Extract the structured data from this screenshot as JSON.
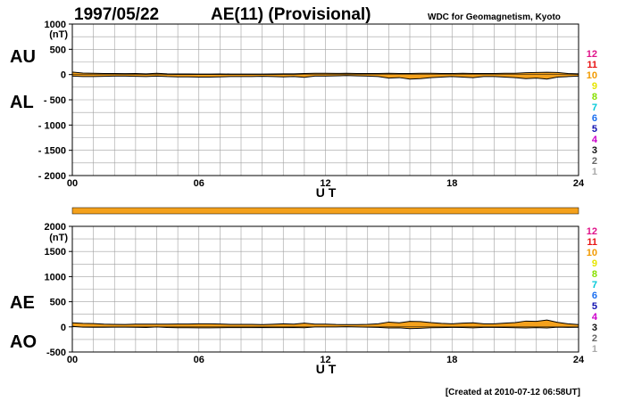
{
  "header": {
    "date": "1997/05/22",
    "title": "AE(11) (Provisional)",
    "source": "WDC for Geomagnetism, Kyoto"
  },
  "footer": {
    "created": "[Created at 2010-07-12 06:58UT]"
  },
  "colors": {
    "fill": "#f4a11c",
    "line": "#000000",
    "grid": "#a0a0a0"
  },
  "legend": {
    "levels": [
      {
        "label": "12",
        "color": "#e0138a"
      },
      {
        "label": "11",
        "color": "#e81414"
      },
      {
        "label": "10",
        "color": "#f29a00"
      },
      {
        "label": "9",
        "color": "#e6e600"
      },
      {
        "label": "8",
        "color": "#88e000"
      },
      {
        "label": "7",
        "color": "#00c8d8"
      },
      {
        "label": "6",
        "color": "#1a6ef0"
      },
      {
        "label": "5",
        "color": "#1010b0"
      },
      {
        "label": "4",
        "color": "#cc00cc"
      },
      {
        "label": "3",
        "color": "#111111"
      },
      {
        "label": "2",
        "color": "#666666"
      },
      {
        "label": "1",
        "color": "#aaaaaa"
      }
    ]
  },
  "chart_data": [
    {
      "type": "area",
      "panel": "AU/AL",
      "ylabel": "(nT)",
      "xlabel": "U T",
      "side_labels": [
        "AU",
        "AL"
      ],
      "xlim": [
        0,
        24
      ],
      "ylim": [
        -2000,
        1000
      ],
      "xticks": [
        "00",
        "06",
        "12",
        "18",
        "24"
      ],
      "yticks": [
        "1000",
        "500",
        "0",
        "- 500",
        "- 1000",
        "- 1500",
        "- 2000"
      ],
      "yticks_values": [
        1000,
        500,
        0,
        -500,
        -1000,
        -1500,
        -2000
      ],
      "grid": true,
      "x": [
        0,
        0.5,
        1,
        1.5,
        2,
        2.5,
        3,
        3.5,
        4,
        4.5,
        5,
        5.5,
        6,
        6.5,
        7,
        7.5,
        8,
        8.5,
        9,
        9.5,
        10,
        10.5,
        11,
        11.5,
        12,
        12.5,
        13,
        13.5,
        14,
        14.5,
        15,
        15.5,
        16,
        16.5,
        17,
        17.5,
        18,
        18.5,
        19,
        19.5,
        20,
        20.5,
        21,
        21.5,
        22,
        22.5,
        23,
        23.5,
        24
      ],
      "series": [
        {
          "name": "AU",
          "values": [
            50,
            30,
            25,
            20,
            20,
            18,
            20,
            15,
            25,
            15,
            12,
            12,
            10,
            10,
            12,
            10,
            10,
            10,
            10,
            12,
            15,
            15,
            20,
            25,
            25,
            22,
            25,
            20,
            20,
            20,
            25,
            20,
            20,
            25,
            25,
            20,
            20,
            25,
            20,
            20,
            20,
            25,
            25,
            35,
            40,
            45,
            40,
            20,
            15
          ]
        },
        {
          "name": "AL",
          "values": [
            -30,
            -40,
            -40,
            -35,
            -30,
            -30,
            -35,
            -40,
            -30,
            -40,
            -45,
            -45,
            -50,
            -50,
            -45,
            -40,
            -40,
            -40,
            -35,
            -40,
            -45,
            -40,
            -55,
            -30,
            -30,
            -25,
            -20,
            -25,
            -30,
            -40,
            -70,
            -60,
            -90,
            -80,
            -60,
            -50,
            -40,
            -50,
            -60,
            -40,
            -40,
            -50,
            -60,
            -80,
            -70,
            -90,
            -50,
            -40,
            -30
          ]
        }
      ]
    },
    {
      "type": "area",
      "panel": "AE/AO",
      "ylabel": "(nT)",
      "xlabel": "U T",
      "side_labels": [
        "AE",
        "AO"
      ],
      "xlim": [
        0,
        24
      ],
      "ylim": [
        -500,
        2000
      ],
      "xticks": [
        "00",
        "06",
        "12",
        "18",
        "24"
      ],
      "yticks": [
        "2000",
        "1500",
        "1000",
        "500",
        "0",
        "-500"
      ],
      "yticks_values": [
        2000,
        1500,
        1000,
        500,
        0,
        -500
      ],
      "grid": true,
      "x": [
        0,
        0.5,
        1,
        1.5,
        2,
        2.5,
        3,
        3.5,
        4,
        4.5,
        5,
        5.5,
        6,
        6.5,
        7,
        7.5,
        8,
        8.5,
        9,
        9.5,
        10,
        10.5,
        11,
        11.5,
        12,
        12.5,
        13,
        13.5,
        14,
        14.5,
        15,
        15.5,
        16,
        16.5,
        17,
        17.5,
        18,
        18.5,
        19,
        19.5,
        20,
        20.5,
        21,
        21.5,
        22,
        22.5,
        23,
        23.5,
        24
      ],
      "series": [
        {
          "name": "AE",
          "values": [
            80,
            70,
            65,
            55,
            50,
            48,
            55,
            55,
            55,
            55,
            57,
            57,
            60,
            60,
            57,
            50,
            50,
            50,
            45,
            52,
            60,
            55,
            75,
            55,
            55,
            47,
            45,
            45,
            50,
            60,
            95,
            80,
            110,
            105,
            85,
            70,
            60,
            75,
            80,
            60,
            60,
            75,
            85,
            115,
            110,
            135,
            90,
            60,
            45
          ]
        },
        {
          "name": "AO",
          "values": [
            10,
            -5,
            -8,
            -8,
            -5,
            -6,
            -8,
            -12,
            -2,
            -12,
            -16,
            -16,
            -20,
            -20,
            -16,
            -15,
            -15,
            -15,
            -12,
            -14,
            -15,
            -12,
            -17,
            -2,
            -2,
            -1,
            2,
            -2,
            -5,
            -10,
            -22,
            -20,
            -35,
            -27,
            -17,
            -15,
            -10,
            -12,
            -20,
            -10,
            -10,
            -12,
            -17,
            -22,
            -15,
            -22,
            -5,
            -10,
            -8
          ]
        }
      ]
    }
  ]
}
